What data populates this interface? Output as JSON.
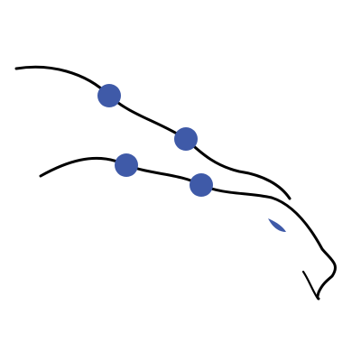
{
  "canvas": {
    "background": "#ffffff"
  },
  "logo": {
    "name": "eagle-head-line-art",
    "stroke_color": "#000000",
    "accent_color": "#3f5aa8",
    "node_count": 4
  }
}
